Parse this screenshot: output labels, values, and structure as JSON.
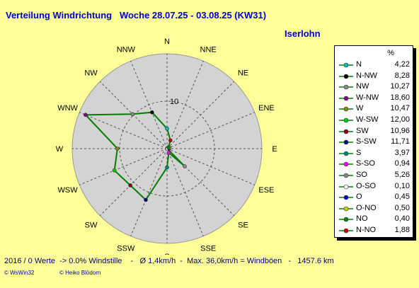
{
  "header": {
    "title": "Verteilung Windrichtung   Woche 28.07.25 - 03.08.25 (KW31)",
    "location": "Iserlohn"
  },
  "footer": {
    "summary": "2016 / 0 Werte  -> 0.0% Windstille    -   Ø 1,4km/h  -  Max. 36,0km/h = Windböen   -   1457.6 km",
    "copyright_left": "© WsWin32",
    "copyright_right": "© Heiko Blödorn"
  },
  "colors": {
    "background": "#ffff99",
    "rose_fill": "#d3d3d3",
    "rose_line": "#008000",
    "title": "#0000cc"
  },
  "chart_data": {
    "type": "radar",
    "unit_label": "%",
    "radial_tick_label": "10",
    "radial_max": 20,
    "radial_tick": 10,
    "compass_labels": [
      "N",
      "NNE",
      "NE",
      "ENE",
      "E",
      "ESE",
      "SE",
      "SSE",
      "S",
      "SSW",
      "SW",
      "WSW",
      "W",
      "WNW",
      "NW",
      "NNW"
    ],
    "series": [
      {
        "label": "N",
        "value": 4.22,
        "angle_deg": 0,
        "color": "#00bbbb"
      },
      {
        "label": "N-NW",
        "value": 8.28,
        "angle_deg": 337.5,
        "color": "#000000"
      },
      {
        "label": "NW",
        "value": 10.27,
        "angle_deg": 315,
        "color": "#888888"
      },
      {
        "label": "W-NW",
        "value": 18.6,
        "angle_deg": 292.5,
        "color": "#880088"
      },
      {
        "label": "W",
        "value": 10.47,
        "angle_deg": 270,
        "color": "#888800"
      },
      {
        "label": "W-SW",
        "value": 12.0,
        "angle_deg": 247.5,
        "color": "#00cc00"
      },
      {
        "label": "SW",
        "value": 10.96,
        "angle_deg": 225,
        "color": "#880000"
      },
      {
        "label": "S-SW",
        "value": 11.71,
        "angle_deg": 202.5,
        "color": "#000088"
      },
      {
        "label": "S",
        "value": 3.97,
        "angle_deg": 180,
        "color": "#008888"
      },
      {
        "label": "S-SO",
        "value": 0.94,
        "angle_deg": 157.5,
        "color": "#ff00ff"
      },
      {
        "label": "SO",
        "value": 5.26,
        "angle_deg": 135,
        "color": "#888888"
      },
      {
        "label": "O-SO",
        "value": 0.1,
        "angle_deg": 112.5,
        "color": "#ffffff"
      },
      {
        "label": "O",
        "value": 0.45,
        "angle_deg": 90,
        "color": "#0000cc"
      },
      {
        "label": "O-NO",
        "value": 0.5,
        "angle_deg": 67.5,
        "color": "#cccc00"
      },
      {
        "label": "NO",
        "value": 0.4,
        "angle_deg": 45,
        "color": "#008800"
      },
      {
        "label": "N-NO",
        "value": 1.88,
        "angle_deg": 22.5,
        "color": "#cc0000"
      }
    ]
  }
}
